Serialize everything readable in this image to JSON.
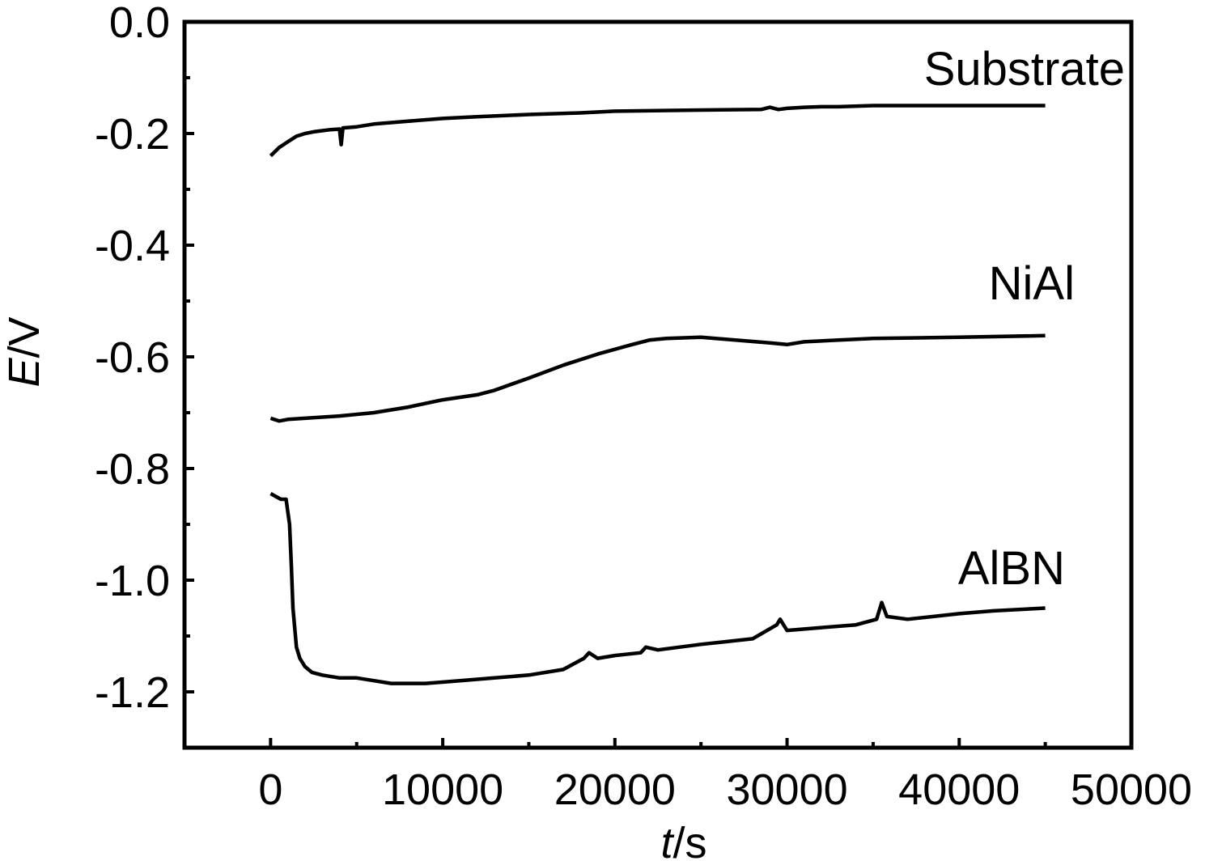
{
  "chart_data": {
    "type": "line",
    "xlabel_italic": "t",
    "xlabel_unit": "/s",
    "ylabel_italic": "E",
    "ylabel_unit": "/V",
    "xlim": [
      -5000,
      50000
    ],
    "ylim": [
      -1.3,
      0.0
    ],
    "xticks": [
      0,
      10000,
      20000,
      30000,
      40000,
      50000
    ],
    "xtick_labels": [
      "0",
      "10000",
      "20000",
      "30000",
      "40000",
      "50000"
    ],
    "yticks": [
      0.0,
      -0.2,
      -0.4,
      -0.6,
      -0.8,
      -1.0,
      -1.2
    ],
    "ytick_labels": [
      "0.0",
      "-0.2",
      "-0.4",
      "-0.6",
      "-0.8",
      "-1.0",
      "-1.2"
    ],
    "grid": false,
    "line_color": "#000000",
    "series": [
      {
        "name": "Substrate",
        "x": [
          0,
          500,
          1000,
          1500,
          2000,
          2500,
          3000,
          3500,
          4000,
          4100,
          4200,
          5000,
          6000,
          8000,
          10000,
          12000,
          15000,
          18000,
          20000,
          25000,
          28500,
          29000,
          29500,
          30000,
          31000,
          32000,
          33000,
          35000,
          40000,
          45000
        ],
        "values": [
          -0.24,
          -0.225,
          -0.215,
          -0.205,
          -0.2,
          -0.197,
          -0.195,
          -0.193,
          -0.192,
          -0.22,
          -0.19,
          -0.188,
          -0.183,
          -0.178,
          -0.173,
          -0.17,
          -0.166,
          -0.163,
          -0.16,
          -0.158,
          -0.157,
          -0.153,
          -0.157,
          -0.155,
          -0.153,
          -0.152,
          -0.152,
          -0.15,
          -0.15,
          -0.15
        ]
      },
      {
        "name": "NiAl",
        "x": [
          0,
          500,
          1000,
          2000,
          4000,
          6000,
          8000,
          10000,
          12000,
          13000,
          15000,
          17000,
          19000,
          21000,
          22000,
          23000,
          25000,
          27000,
          29000,
          30000,
          31000,
          33000,
          35000,
          40000,
          45000
        ],
        "values": [
          -0.71,
          -0.715,
          -0.712,
          -0.71,
          -0.706,
          -0.7,
          -0.69,
          -0.677,
          -0.668,
          -0.66,
          -0.638,
          -0.615,
          -0.595,
          -0.578,
          -0.57,
          -0.567,
          -0.565,
          -0.57,
          -0.575,
          -0.578,
          -0.573,
          -0.57,
          -0.567,
          -0.565,
          -0.562
        ]
      },
      {
        "name": "AlBN",
        "x": [
          0,
          300,
          600,
          900,
          1100,
          1200,
          1300,
          1500,
          1700,
          2000,
          2400,
          3000,
          4000,
          5000,
          6000,
          7000,
          9000,
          11000,
          13000,
          15000,
          17000,
          18200,
          18500,
          19000,
          20000,
          21500,
          21800,
          22500,
          25000,
          28000,
          29400,
          29600,
          30000,
          32000,
          34000,
          35200,
          35500,
          35800,
          37000,
          40000,
          42000,
          45000
        ],
        "values": [
          -0.845,
          -0.85,
          -0.855,
          -0.855,
          -0.9,
          -0.97,
          -1.05,
          -1.12,
          -1.14,
          -1.155,
          -1.165,
          -1.17,
          -1.175,
          -1.175,
          -1.18,
          -1.185,
          -1.185,
          -1.18,
          -1.175,
          -1.17,
          -1.16,
          -1.14,
          -1.13,
          -1.14,
          -1.135,
          -1.13,
          -1.12,
          -1.125,
          -1.115,
          -1.105,
          -1.08,
          -1.07,
          -1.09,
          -1.085,
          -1.08,
          -1.07,
          -1.04,
          -1.065,
          -1.07,
          -1.06,
          -1.055,
          -1.05
        ]
      }
    ]
  }
}
